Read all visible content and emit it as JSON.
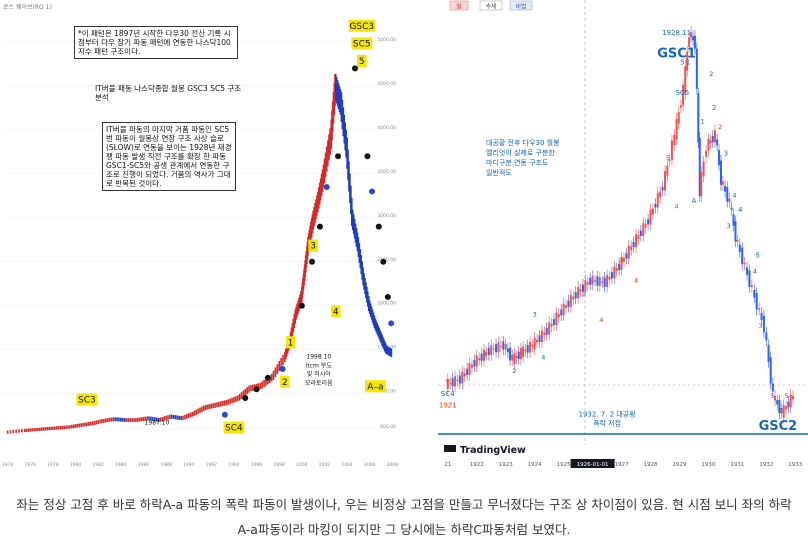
{
  "chart_data": [
    {
      "type": "line",
      "panel": "left",
      "top_label": "로스 웨이브(RO 1)",
      "x_ticks": [
        "1974",
        "1976",
        "1978",
        "1980",
        "1982",
        "1984",
        "1986",
        "1988",
        "1990",
        "1992",
        "1994",
        "1996",
        "1998",
        "2000",
        "2002",
        "2004",
        "2006",
        "2008"
      ],
      "y_ticks": [
        "600.00",
        "1000.00",
        "1500.00",
        "2000.00",
        "2500.00",
        "3000.00",
        "3500.00",
        "4000.00",
        "4500.00",
        "5000.00"
      ],
      "series": [
        {
          "x": [
            1974.0,
            1975.5,
            1976.5,
            1977.5,
            1978.5,
            1979.5,
            1980.5,
            1981.5,
            1982.5,
            1983.5,
            1984.5,
            1985.5,
            1986.5,
            1987.5,
            1988.5,
            1989.5,
            1990.5,
            1991.5,
            1992.5,
            1993.5,
            1994.5,
            1995.5,
            1996.5,
            1997.5,
            1998.5,
            1999.0,
            1999.5,
            2000.0,
            2000.3,
            2000.6,
            2001.0,
            2001.5,
            2002.0,
            2002.6,
            2003.0,
            2003.5,
            2004.0,
            2004.5,
            2005.0,
            2005.5,
            2006.0,
            2006.5,
            2007.0,
            2007.5,
            2008.0
          ],
          "values": [
            560,
            580,
            590,
            600,
            610,
            620,
            640,
            660,
            690,
            710,
            700,
            700,
            720,
            700,
            740,
            720,
            770,
            840,
            870,
            900,
            950,
            1060,
            1090,
            1190,
            1400,
            1600,
            1900,
            2100,
            2400,
            2700,
            2950,
            3200,
            3500,
            3900,
            4500,
            4300,
            3800,
            3000,
            2700,
            2300,
            2000,
            1800,
            1650,
            1500,
            1460
          ]
        }
      ],
      "annotations": [
        {
          "label": "GSC3",
          "x": 2005.3,
          "y": 5150
        },
        {
          "label": "SC5",
          "x": 2005.3,
          "y": 4950
        },
        {
          "label": "5",
          "x": 2005.3,
          "y": 4750
        },
        {
          "label": "SC3",
          "x": 1981.0,
          "y": 900
        },
        {
          "label": "SC4",
          "x": 1994.0,
          "y": 580
        },
        {
          "label": "1987.10",
          "x": 1987.2,
          "y": 650
        },
        {
          "label": "1",
          "x": 1999.0,
          "y": 1550
        },
        {
          "label": "2",
          "x": 1998.5,
          "y": 1100
        },
        {
          "label": "3",
          "x": 2001.0,
          "y": 2650
        },
        {
          "label": "4",
          "x": 2003.0,
          "y": 1900
        },
        {
          "label": "A–a",
          "x": 2006.5,
          "y": 1050
        },
        {
          "label": "1998.10",
          "x": 2001.5,
          "y": 1400
        },
        {
          "label": "ltcm 부도",
          "x": 2001.5,
          "y": 1300
        },
        {
          "label": "및 러시아",
          "x": 2001.5,
          "y": 1200
        },
        {
          "label": "모라토리움",
          "x": 2001.5,
          "y": 1100
        }
      ],
      "notes": [
        "*이 패턴은 1897년 시작한 다우30 전산 기록 시점부터 다우 장기 파동 패턴에 연동한 나스닥100지수 패턴 구조이다.",
        "IT버블 패동 나스닥종합 월봉 GSC3 SC5 구조 분석",
        "IT버블 파동의 마지막 거품 파동인 SC5번 파동이 월봉상 연장 구조 사상 슬로(SLOW)로 연동을 보이는 1928년 재경팽 파동 발생 직전 구조를 확장 한 파동 GSC1-SC5와 공생 관계에서 연동한 구조로 진행이 되었다. 거품의 역사가 그대로 반복된 것이다."
      ]
    },
    {
      "type": "line",
      "panel": "right",
      "x_ticks": [
        "21",
        "1922",
        "1923",
        "1924",
        "1925",
        "1926-01-01",
        "1927",
        "1928",
        "1929",
        "1930",
        "1931",
        "1932",
        "1933"
      ],
      "top_buttons": [
        "일",
        "추세",
        "비빔"
      ],
      "series": [
        {
          "x": [
            1921.0,
            1921.5,
            1922.0,
            1922.5,
            1923.0,
            1923.3,
            1923.6,
            1924.0,
            1924.5,
            1925.0,
            1925.5,
            1926.0,
            1926.5,
            1927.0,
            1927.5,
            1928.0,
            1928.5,
            1928.9,
            1929.2,
            1929.4,
            1929.6,
            1929.75,
            1930.0,
            1930.3,
            1930.5,
            1930.8,
            1931.0,
            1931.5,
            1932.0,
            1932.3,
            1932.6,
            1933.0
          ],
          "values": [
            70,
            75,
            90,
            100,
            105,
            92,
            98,
            105,
            118,
            135,
            150,
            162,
            160,
            175,
            195,
            215,
            245,
            290,
            330,
            380,
            370,
            240,
            280,
            290,
            250,
            230,
            200,
            160,
            120,
            60,
            45,
            60
          ]
        }
      ],
      "annotations": [
        {
          "label": "B",
          "x": 1929.7
        },
        {
          "label": "1928.11",
          "x": 1928.9
        },
        {
          "label": "GSC1",
          "x": 1928.9
        },
        {
          "label": "5",
          "x": 1929.1
        },
        {
          "label": "SC5",
          "x": 1929.1
        },
        {
          "label": "SC4",
          "x": 1921.0
        },
        {
          "label": "1921",
          "x": 1921.0
        },
        {
          "label": "Y",
          "x": 1921.0
        },
        {
          "label": "A",
          "x": 1929.5
        },
        {
          "label": "1",
          "x": 1929.3
        },
        {
          "label": "2",
          "x": 1930.2
        },
        {
          "label": "3",
          "x": 1930.6
        },
        {
          "label": "4",
          "x": 1931.1
        },
        {
          "label": "5",
          "x": 1931.7
        },
        {
          "label": "C",
          "x": 1932.5
        },
        {
          "label": "GSC2",
          "x": 1932.4
        },
        {
          "label": "1932. 7. 2 대공황",
          "x": 1926.5
        },
        {
          "label": "폭락 저점",
          "x": 1926.5
        }
      ],
      "note_lines": [
        "대공황 전후 다우30 월봉",
        "엘리엇이 실제로 구분한",
        "마디구분 연동 구조도",
        "일반적도"
      ],
      "brand": "TradingView"
    }
  ],
  "caption": {
    "line1": "좌는 정상 고점 후 바로 하락A-a 파동의 폭락 파동이 발생이나, 우는 비정상 고점을 만들고 무너졌다는 구조 상 차이점이 있음. 현 시점 보니 좌의 하락",
    "line2": "A-a파동이라 마킹이 되지만 그 당시에는 하락C파동처럼 보였다."
  },
  "colors": {
    "up_candle": "#d62828",
    "down_candle": "#1f3fbf",
    "right_up": "#ef5350",
    "right_down": "#2962ff",
    "label_blue": "#1565c0",
    "label_red": "#d84315",
    "highlight_yellow": "#f7e600"
  }
}
